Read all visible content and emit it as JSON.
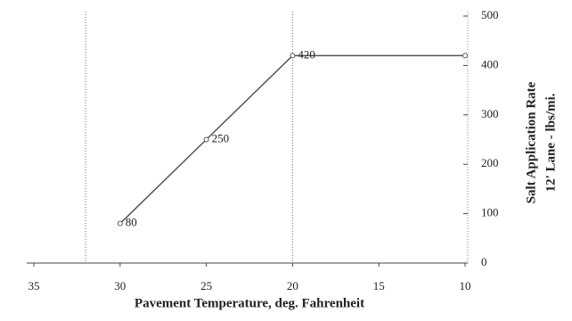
{
  "chart_data": {
    "type": "line",
    "x_label": "Pavement Temperature, deg. Fahrenheit",
    "y_label": [
      "Salt Application Rate",
      "12' Lane - lbs/mi."
    ],
    "x": [
      30,
      25,
      20,
      10
    ],
    "series": [
      {
        "name": "Salt Application Rate",
        "color": "#555555",
        "values": [
          80,
          250,
          420,
          420
        ]
      }
    ],
    "value_labels": [
      "80",
      "250",
      "420",
      null
    ],
    "xlim": [
      35,
      10
    ],
    "xticks": [
      35,
      30,
      25,
      20,
      15,
      10
    ],
    "ylim": [
      0,
      500
    ],
    "yticks": [
      0,
      100,
      200,
      300,
      400,
      500
    ],
    "vlines": [
      32,
      20
    ]
  }
}
